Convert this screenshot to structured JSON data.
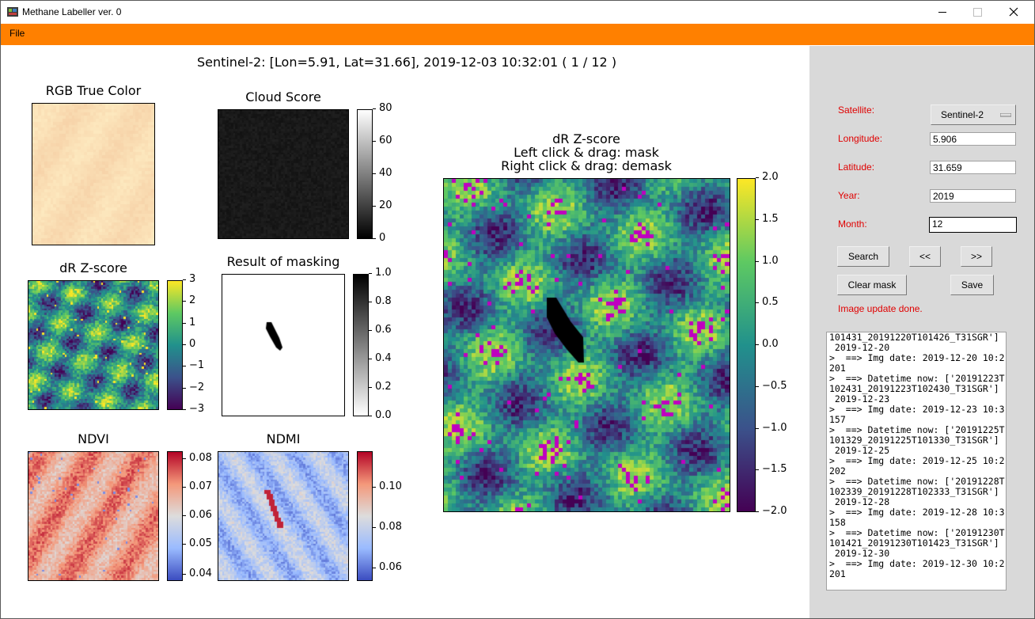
{
  "window": {
    "title": "Methane Labeller ver. 0"
  },
  "menu": {
    "file": "File"
  },
  "figure": {
    "main_title": "Sentinel-2: [Lon=5.91, Lat=31.66], 2019-12-03 10:32:01 ( 1 / 12 )",
    "panels": {
      "rgb": {
        "title": "RGB True Color"
      },
      "cloud": {
        "title": "Cloud Score",
        "ticks": [
          "80",
          "60",
          "40",
          "20",
          "0"
        ]
      },
      "dr_small": {
        "title": "dR Z-score",
        "ticks": [
          "3",
          "2",
          "1",
          "0",
          "−1",
          "−2",
          "−3"
        ]
      },
      "mask": {
        "title": "Result of masking",
        "ticks": [
          "1.0",
          "0.8",
          "0.6",
          "0.4",
          "0.2",
          "0.0"
        ]
      },
      "ndvi": {
        "title": "NDVI",
        "ticks": [
          "0.08",
          "0.07",
          "0.06",
          "0.05",
          "0.04"
        ]
      },
      "ndmi": {
        "title": "NDMI",
        "ticks": [
          "0.10",
          "0.08",
          "0.06"
        ]
      },
      "dr_large": {
        "title_1": "dR Z-score",
        "title_2": "Left click & drag: mask",
        "title_3": "Right click & drag: demask",
        "ticks": [
          "2.0",
          "1.5",
          "1.0",
          "0.5",
          "0.0",
          "−0.5",
          "−1.0",
          "−1.5",
          "−2.0"
        ]
      }
    }
  },
  "controls": {
    "satellite_label": "Satellite:",
    "satellite_value": "Sentinel-2",
    "longitude_label": "Longitude:",
    "longitude_value": "5.906",
    "latitude_label": "Latitude:",
    "latitude_value": "31.659",
    "year_label": "Year:",
    "year_value": "2019",
    "month_label": "Month:",
    "month_value": "12",
    "search_button": "Search",
    "prev_button": "<<",
    "next_button": ">>",
    "clear_mask_button": "Clear mask",
    "save_button": "Save",
    "status": "Image update done."
  },
  "log": [
    "101431_20191220T101426_T31SGR']",
    " 2019-12-20",
    ">  ==> Img date: 2019-12-20 10:2",
    "201",
    ">  ==> Datetime now: ['20191223T",
    "102431_20191223T102430_T31SGR']",
    " 2019-12-23",
    ">  ==> Img date: 2019-12-23 10:3",
    "157",
    ">  ==> Datetime now: ['20191225T",
    "101329_20191225T101330_T31SGR']",
    " 2019-12-25",
    ">  ==> Img date: 2019-12-25 10:2",
    "202",
    ">  ==> Datetime now: ['20191228T",
    "102339_20191228T102333_T31SGR']",
    " 2019-12-28",
    ">  ==> Img date: 2019-12-28 10:3",
    "158",
    ">  ==> Datetime now: ['20191230T",
    "101421_20191230T101423_T31SGR']",
    " 2019-12-30",
    ">  ==> Img date: 2019-12-30 10:2",
    "201"
  ],
  "colors": {
    "menubar": "#ff8000",
    "sidebar": "#d9d9d9",
    "label_red": "#e00000"
  }
}
